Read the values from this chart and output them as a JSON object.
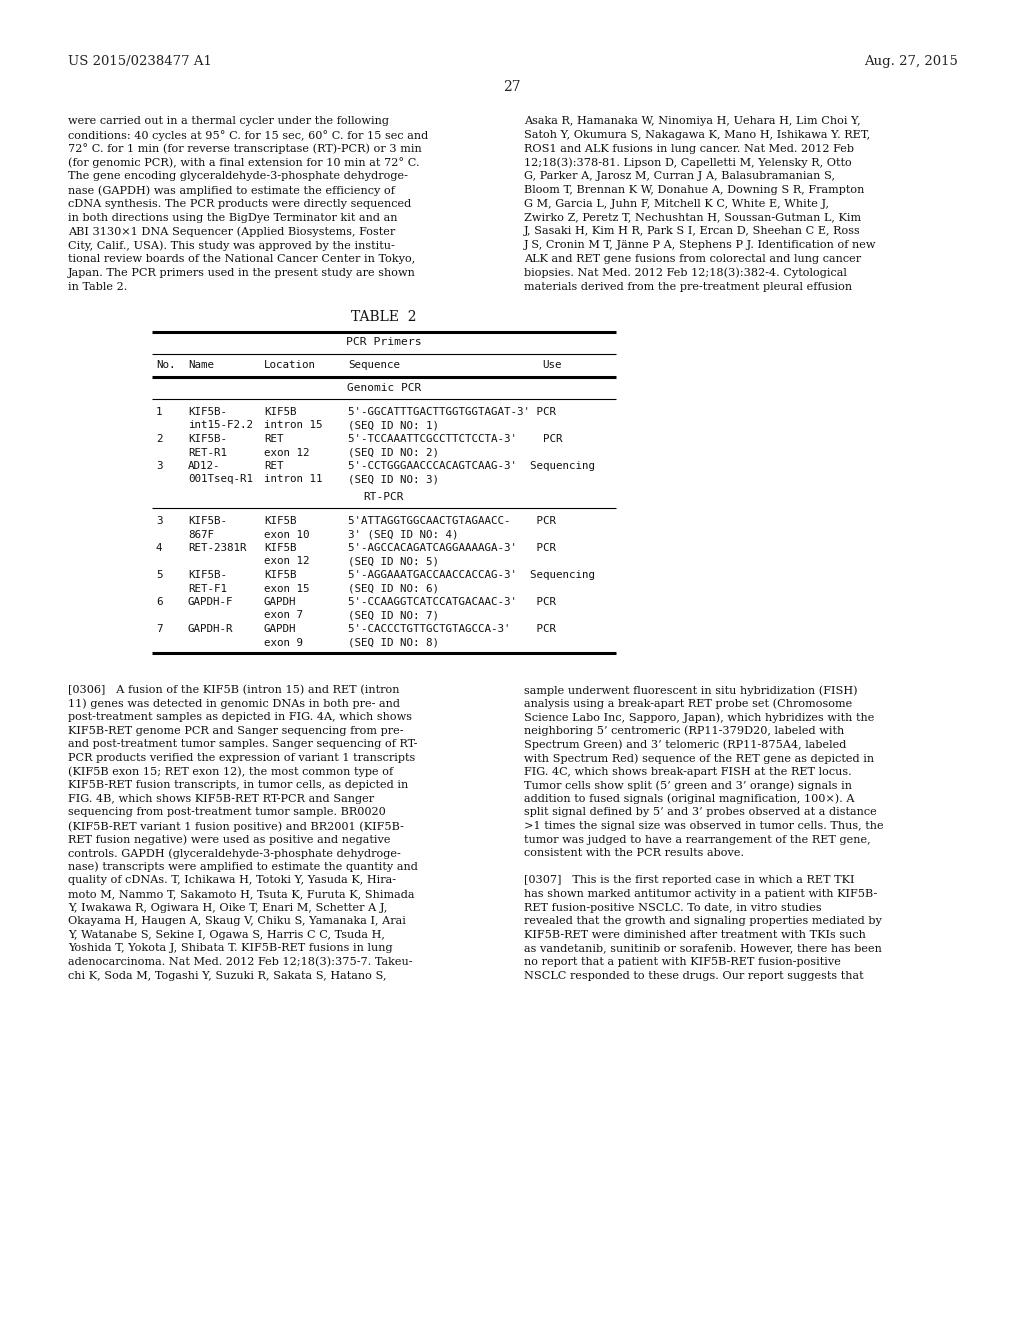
{
  "background_color": "#ffffff",
  "page_number": "27",
  "header_left": "US 2015/0238477 A1",
  "header_right": "Aug. 27, 2015",
  "left_col_text": [
    "were carried out in a thermal cycler under the following",
    "conditions: 40 cycles at 95° C. for 15 sec, 60° C. for 15 sec and",
    "72° C. for 1 min (for reverse transcriptase (RT)-PCR) or 3 min",
    "(for genomic PCR), with a final extension for 10 min at 72° C.",
    "The gene encoding glyceraldehyde-3-phosphate dehydroge-",
    "nase (GAPDH) was amplified to estimate the efficiency of",
    "cDNA synthesis. The PCR products were directly sequenced",
    "in both directions using the BigDye Terminator kit and an",
    "ABI 3130×1 DNA Sequencer (Applied Biosystems, Foster",
    "City, Calif., USA). This study was approved by the institu-",
    "tional review boards of the National Cancer Center in Tokyo,",
    "Japan. The PCR primers used in the present study are shown",
    "in Table 2."
  ],
  "right_col_text": [
    "Asaka R, Hamanaka W, Ninomiya H, Uehara H, Lim Choi Y,",
    "Satoh Y, Okumura S, Nakagawa K, Mano H, Ishikawa Y. RET,",
    "ROS1 and ALK fusions in lung cancer. Nat Med. 2012 Feb",
    "12;18(3):378-81. Lipson D, Capelletti M, Yelensky R, Otto",
    "G, Parker A, Jarosz M, Curran J A, Balasubramanian S,",
    "Bloom T, Brennan K W, Donahue A, Downing S R, Frampton",
    "G M, Garcia L, Juhn F, Mitchell K C, White E, White J,",
    "Zwirko Z, Peretz T, Nechushtan H, Soussan-Gutman L, Kim",
    "J, Sasaki H, Kim H R, Park S I, Ercan D, Sheehan C E, Ross",
    "J S, Cronin M T, Jänne P A, Stephens P J. Identification of new",
    "ALK and RET gene fusions from colorectal and lung cancer",
    "biopsies. Nat Med. 2012 Feb 12;18(3):382-4. Cytological",
    "materials derived from the pre-treatment pleural effusion"
  ],
  "table_title": "TABLE  2",
  "table_subtitle": "PCR Primers",
  "table_section1": "Genomic PCR",
  "table_section2": "RT-PCR",
  "genomic_rows": [
    [
      "1",
      "KIF5B-",
      "KIF5B",
      "5'-GGCATTTGACTTGGTGGTAGAT-3' PCR"
    ],
    [
      "",
      "int15-F2.2",
      "intron 15",
      "(SEQ ID NO: 1)"
    ],
    [
      "2",
      "KIF5B-",
      "RET",
      "5'-TCCAAATTCGCCTTCTCCTA-3'    PCR"
    ],
    [
      "",
      "RET-R1",
      "exon 12",
      "(SEQ ID NO: 2)"
    ],
    [
      "3",
      "AD12-",
      "RET",
      "5'-CCTGGGAACCCACAGTCAAG-3'  Sequencing"
    ],
    [
      "",
      "001Tseq-R1",
      "intron 11",
      "(SEQ ID NO: 3)"
    ]
  ],
  "rt_rows": [
    [
      "3",
      "KIF5B-",
      "KIF5B",
      "5'ATTAGGTGGCAACTGTAGAACC-    PCR"
    ],
    [
      "",
      "867F",
      "exon 10",
      "3' (SEQ ID NO: 4)"
    ],
    [
      "4",
      "RET-2381R",
      "KIF5B",
      "5'-AGCCACAGATCAGGAAAAGA-3'   PCR"
    ],
    [
      "",
      "",
      "exon 12",
      "(SEQ ID NO: 5)"
    ],
    [
      "5",
      "KIF5B-",
      "KIF5B",
      "5'-AGGAAATGACCAACCACCAG-3'  Sequencing"
    ],
    [
      "",
      "RET-F1",
      "exon 15",
      "(SEQ ID NO: 6)"
    ],
    [
      "6",
      "GAPDH-F",
      "GAPDH",
      "5'-CCAAGGTCATCCATGACAAC-3'   PCR"
    ],
    [
      "",
      "",
      "exon 7",
      "(SEQ ID NO: 7)"
    ],
    [
      "7",
      "GAPDH-R",
      "GAPDH",
      "5'-CACCCTGTTGCTGTAGCCA-3'    PCR"
    ],
    [
      "",
      "",
      "exon 9",
      "(SEQ ID NO: 8)"
    ]
  ],
  "bottom_left_lines": [
    "[0306]   A fusion of the KIF5B (intron 15) and RET (intron",
    "11) genes was detected in genomic DNAs in both pre- and",
    "post-treatment samples as depicted in FIG. 4A, which shows",
    "KIF5B-RET genome PCR and Sanger sequencing from pre-",
    "and post-treatment tumor samples. Sanger sequencing of RT-",
    "PCR products verified the expression of variant 1 transcripts",
    "(KIF5B exon 15; RET exon 12), the most common type of",
    "KIF5B-RET fusion transcripts, in tumor cells, as depicted in",
    "FIG. 4B, which shows KIF5B-RET RT-PCR and Sanger",
    "sequencing from post-treatment tumor sample. BR0020",
    "(KIF5B-RET variant 1 fusion positive) and BR2001 (KIF5B-",
    "RET fusion negative) were used as positive and negative",
    "controls. GAPDH (glyceraldehyde-3-phosphate dehydroge-",
    "nase) transcripts were amplified to estimate the quantity and",
    "quality of cDNAs. T, Ichikawa H, Totoki Y, Yasuda K, Hira-",
    "moto M, Nammo T, Sakamoto H, Tsuta K, Furuta K, Shimada",
    "Y, Iwakawa R, Ogiwara H, Oike T, Enari M, Schetter A J,",
    "Okayama H, Haugen A, Skaug V, Chiku S, Yamanaka I, Arai",
    "Y, Watanabe S, Sekine I, Ogawa S, Harris C C, Tsuda H,",
    "Yoshida T, Yokota J, Shibata T. KIF5B-RET fusions in lung",
    "adenocarcinoma. Nat Med. 2012 Feb 12;18(3):375-7. Takeu-",
    "chi K, Soda M, Togashi Y, Suzuki R, Sakata S, Hatano S,"
  ],
  "bottom_right_lines": [
    "sample underwent fluorescent in situ hybridization (FISH)",
    "analysis using a break-apart RET probe set (Chromosome",
    "Science Labo Inc, Sapporo, Japan), which hybridizes with the",
    "neighboring 5’ centromeric (RP11-379D20, labeled with",
    "Spectrum Green) and 3’ telomeric (RP11-875A4, labeled",
    "with Spectrum Red) sequence of the RET gene as depicted in",
    "FIG. 4C, which shows break-apart FISH at the RET locus.",
    "Tumor cells show split (5’ green and 3’ orange) signals in",
    "addition to fused signals (original magnification, 100×). A",
    "split signal defined by 5’ and 3’ probes observed at a distance",
    ">1 times the signal size was observed in tumor cells. Thus, the",
    "tumor was judged to have a rearrangement of the RET gene,",
    "consistent with the PCR results above.",
    "",
    "[0307]   This is the first reported case in which a RET TKI",
    "has shown marked antitumor activity in a patient with KIF5B-",
    "RET fusion-positive NSCLC. To date, in vitro studies",
    "revealed that the growth and signaling properties mediated by",
    "KIF5B-RET were diminished after treatment with TKIs such",
    "as vandetanib, sunitinib or sorafenib. However, there has been",
    "no report that a patient with KIF5B-RET fusion-positive",
    "NSCLC responded to these drugs. Our report suggests that"
  ]
}
